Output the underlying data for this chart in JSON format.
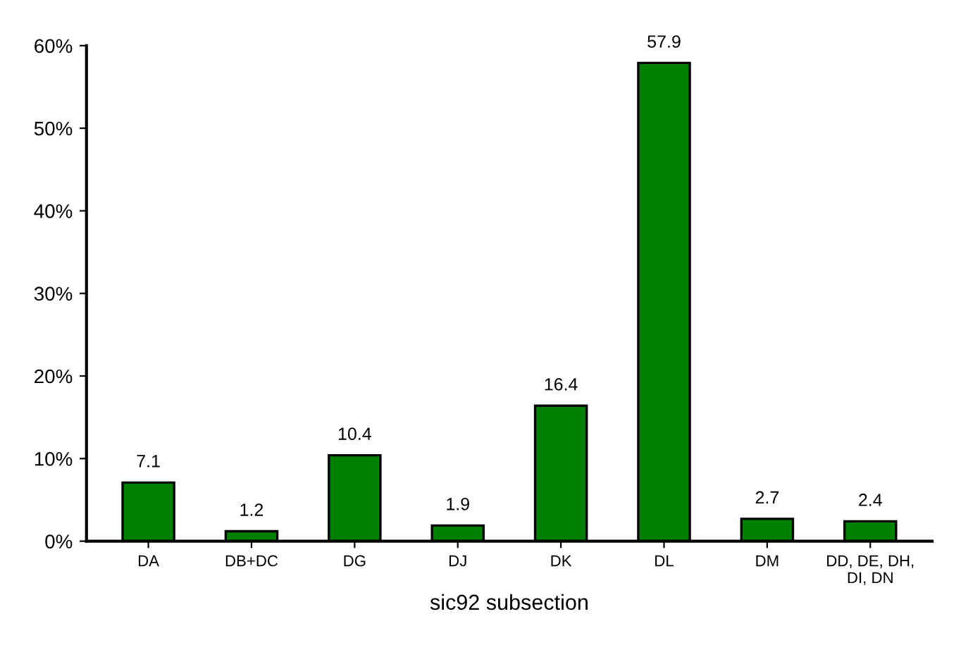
{
  "chart_data": {
    "type": "bar",
    "xlabel": "sic92 subsection",
    "categories": [
      "DA",
      "DB+DC",
      "DG",
      "DJ",
      "DK",
      "DL",
      "DM",
      "DD, DE, DH,\nDI, DN"
    ],
    "values": [
      7.1,
      1.2,
      10.4,
      1.9,
      16.4,
      57.9,
      2.7,
      2.4
    ],
    "color": "#008000",
    "data_labels": true,
    "grid": false,
    "ylim": [
      0,
      60
    ],
    "yticks": [
      {
        "value": 0,
        "label": "0%"
      },
      {
        "value": 10,
        "label": "10%"
      },
      {
        "value": 20,
        "label": "20%"
      },
      {
        "value": 30,
        "label": "30%"
      },
      {
        "value": 40,
        "label": "40%"
      },
      {
        "value": 50,
        "label": "50%"
      },
      {
        "value": 60,
        "label": "60%"
      }
    ]
  }
}
